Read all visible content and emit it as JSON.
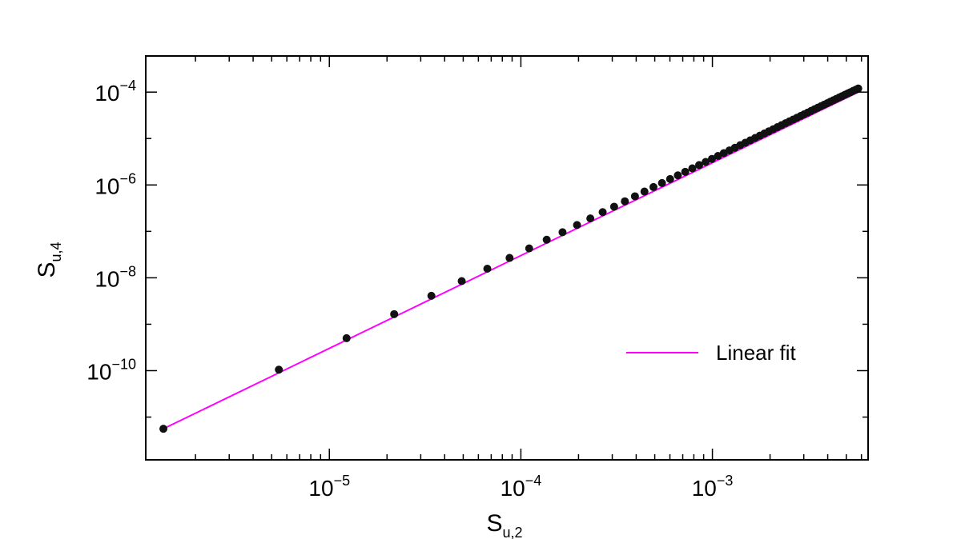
{
  "chart_data": {
    "type": "scatter",
    "xscale": "log",
    "yscale": "log",
    "xlim": [
      1.1e-06,
      0.0065
    ],
    "ylim": [
      1.2e-12,
      0.0006
    ],
    "grid": false,
    "legend_position": "right",
    "colors": {
      "points": "#111111",
      "fit": "#ff00ff",
      "axes": "#000000"
    },
    "xlabel": {
      "base": "S",
      "sub": "u,2"
    },
    "ylabel": {
      "base": "S",
      "sub": "u,4"
    },
    "x_ticks": [
      {
        "value": 1e-05,
        "base": "10",
        "exp": "−5"
      },
      {
        "value": 0.0001,
        "base": "10",
        "exp": "−4"
      },
      {
        "value": 0.001,
        "base": "10",
        "exp": "−3"
      }
    ],
    "y_ticks": [
      {
        "value": 1e-10,
        "base": "10",
        "exp": "−10"
      },
      {
        "value": 1e-08,
        "base": "10",
        "exp": "−8"
      },
      {
        "value": 1e-06,
        "base": "10",
        "exp": "−6"
      },
      {
        "value": 0.0001,
        "base": "10",
        "exp": "−4"
      }
    ],
    "points": {
      "x": [
        1.36e-06,
        5.45e-06,
        1.23e-05,
        2.18e-05,
        3.41e-05,
        4.91e-05,
        6.68e-05,
        8.73e-05,
        0.0001105,
        0.0001364,
        0.000165,
        0.0001964,
        0.0002305,
        0.0002673,
        0.0003069,
        0.0003491,
        0.0003941,
        0.0004418,
        0.0004923,
        0.0005455,
        0.0006014,
        0.00066,
        0.0007214,
        0.0007855,
        0.0008524,
        0.000922,
        0.0009943,
        0.0010693,
        0.0011471,
        0.0012277,
        0.0013109,
        0.0013969,
        0.0014857,
        0.0015771,
        0.0016714,
        0.0017683,
        0.001868,
        0.0019704,
        0.0020756,
        0.0021835,
        0.0022942,
        0.0024076,
        0.0025237,
        0.0026426,
        0.0027642,
        0.0028886,
        0.0030157,
        0.0031455,
        0.0032781,
        0.0034135,
        0.0035515,
        0.0036924,
        0.003836,
        0.0039823,
        0.0041313,
        0.0042831,
        0.0044377,
        0.004595,
        0.004755,
        0.0049178,
        0.0050833,
        0.0052516,
        0.0054226,
        0.0055964,
        0.005773
      ],
      "y": [
        5.6e-12,
        1.05e-10,
        5e-10,
        1.65e-09,
        4.1e-09,
        8.5e-09,
        1.57e-08,
        2.68e-08,
        4.3e-08,
        6.6e-08,
        9.6e-08,
        1.37e-07,
        1.9e-07,
        2.6e-07,
        3.4e-07,
        4.45e-07,
        5.7e-07,
        7.2e-07,
        9e-07,
        1.1e-06,
        1.34e-06,
        1.61e-06,
        1.92e-06,
        2.28e-06,
        2.68e-06,
        3.13e-06,
        3.64e-06,
        4.21e-06,
        4.85e-06,
        5.55e-06,
        6.33e-06,
        7.19e-06,
        8.13e-06,
        9.16e-06,
        1.029e-05,
        1.152e-05,
        1.285e-05,
        1.43e-05,
        1.586e-05,
        1.755e-05,
        1.937e-05,
        2.133e-05,
        2.343e-05,
        2.568e-05,
        2.808e-05,
        3.065e-05,
        3.338e-05,
        3.629e-05,
        3.939e-05,
        4.267e-05,
        4.614e-05,
        4.982e-05,
        5.371e-05,
        5.782e-05,
        6.215e-05,
        6.672e-05,
        7.153e-05,
        7.658e-05,
        8.19e-05,
        8.746e-05,
        9.33e-05,
        9.94e-05,
        0.0001058,
        0.0001125,
        0.0001195
      ]
    },
    "fit_line": {
      "name": "Linear fit",
      "x": [
        1.36e-06,
        0.005773
      ],
      "y": [
        5.6e-12,
        0.0001
      ]
    }
  }
}
